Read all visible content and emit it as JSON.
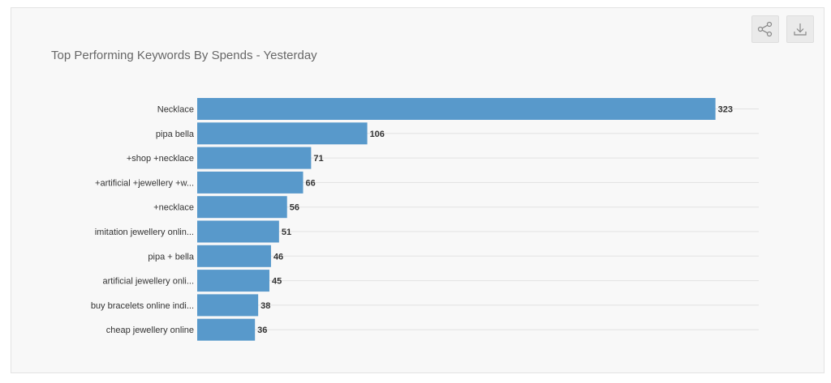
{
  "chart_data": {
    "type": "bar",
    "orientation": "horizontal",
    "title": "Top Performing Keywords By Spends - Yesterday",
    "categories": [
      "Necklace",
      "pipa bella",
      "+shop +necklace",
      "+artificial +jewellery +w...",
      "+necklace",
      "imitation jewellery onlin...",
      "pipa + bella",
      "artificial jewellery onli...",
      "buy bracelets online indi...",
      "cheap jewellery online"
    ],
    "values": [
      323,
      106,
      71,
      66,
      56,
      51,
      46,
      45,
      38,
      36
    ],
    "xlim": [
      0,
      350
    ],
    "grid": true,
    "data_labels": true,
    "bar_color": "#5899cb"
  },
  "toolbar": {
    "share_icon": "share-icon",
    "download_icon": "download-icon"
  }
}
